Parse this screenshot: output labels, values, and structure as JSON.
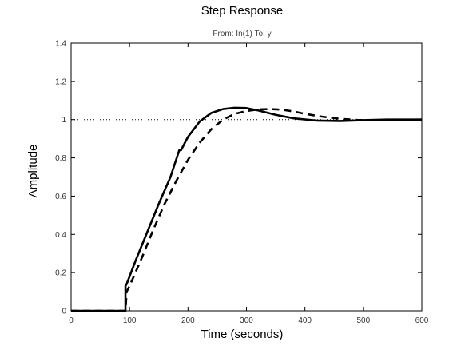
{
  "chart_data": {
    "type": "line",
    "title": "Step Response",
    "subtitle": "From: In(1)  To: y",
    "xlabel": "Time (seconds)",
    "ylabel": "Amplitude",
    "xlim": [
      0,
      600
    ],
    "ylim": [
      0,
      1.4
    ],
    "x_ticks": [
      0,
      100,
      200,
      300,
      400,
      500,
      600
    ],
    "y_ticks": [
      0,
      0.2,
      0.4,
      0.6,
      0.8,
      1,
      1.2,
      1.4
    ],
    "grid": false,
    "reference_line": {
      "y": 1,
      "style": "dotted"
    },
    "series": [
      {
        "style": "solid",
        "x": [
          0,
          93,
          93,
          95,
          110,
          130,
          150,
          170,
          185,
          188,
          200,
          220,
          240,
          260,
          280,
          300,
          320,
          350,
          380,
          420,
          460,
          500,
          540,
          600
        ],
        "y": [
          0,
          0,
          0.13,
          0.14,
          0.26,
          0.41,
          0.56,
          0.7,
          0.84,
          0.84,
          0.91,
          0.99,
          1.035,
          1.055,
          1.062,
          1.06,
          1.048,
          1.025,
          1.007,
          0.995,
          0.993,
          0.997,
          1.0,
          1.0
        ]
      },
      {
        "style": "dashed",
        "x": [
          0,
          93,
          95,
          100,
          120,
          140,
          160,
          180,
          200,
          220,
          240,
          260,
          280,
          300,
          320,
          340,
          360,
          380,
          400,
          430,
          460,
          490,
          520,
          560,
          600
        ],
        "y": [
          0,
          0,
          0.1,
          0.13,
          0.27,
          0.42,
          0.56,
          0.68,
          0.79,
          0.88,
          0.95,
          1.0,
          1.03,
          1.045,
          1.053,
          1.055,
          1.052,
          1.043,
          1.03,
          1.015,
          1.004,
          0.998,
          0.996,
          0.998,
          1.0
        ]
      }
    ]
  }
}
